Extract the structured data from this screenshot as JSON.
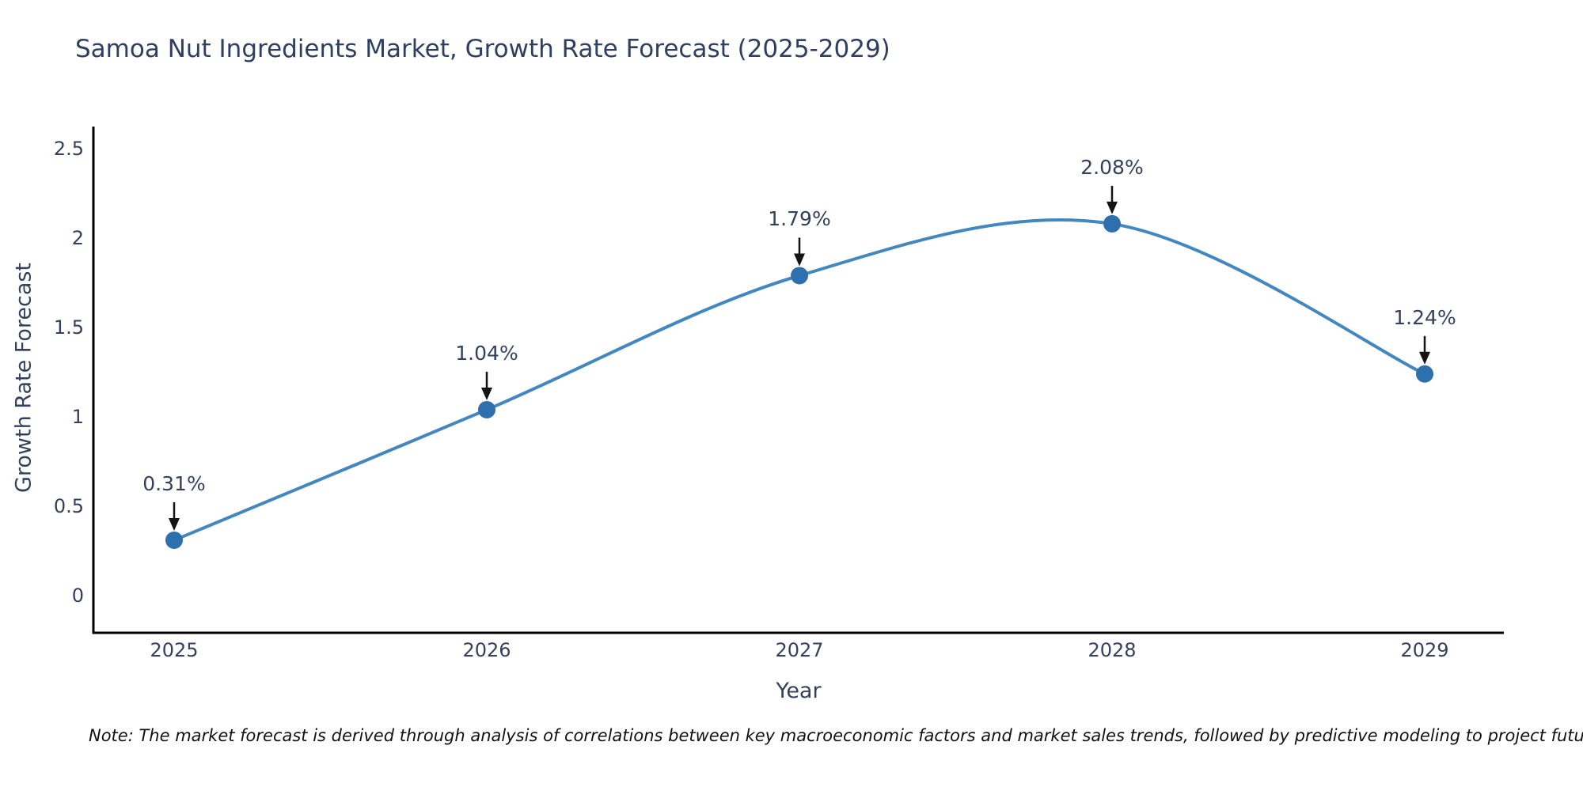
{
  "page": {
    "background": "#ffffff"
  },
  "chart_data": {
    "type": "line",
    "line_shape": "spline",
    "title": "Samoa Nut Ingredients Market, Growth Rate Forecast (2025-2029)",
    "xlabel": "Year",
    "ylabel": "Growth Rate Forecast",
    "x": [
      2025,
      2026,
      2027,
      2028,
      2029
    ],
    "values": [
      0.31,
      1.04,
      1.79,
      2.08,
      1.24
    ],
    "point_labels": [
      "0.31%",
      "1.04%",
      "1.79%",
      "2.08%",
      "1.24%"
    ],
    "xticks": [
      "2025",
      "2026",
      "2027",
      "2028",
      "2029"
    ],
    "yticks": [
      0,
      0.5,
      1,
      1.5,
      2,
      2.5
    ],
    "ylim": [
      -0.21,
      2.62
    ],
    "xlim": [
      2024.74,
      2029.26
    ],
    "grid": false,
    "legend_position": "none",
    "annotations_have_arrows": true,
    "colors": {
      "line": "#4287c0",
      "marker": "#2e70ad",
      "axis": "#000000",
      "arrow": "#141414",
      "text": "#33415c",
      "title": "#2e3f5f"
    }
  },
  "footnote": "Note: The market forecast is derived through analysis of correlations between key macroeconomic factors and market sales trends, followed by predictive modeling to project future sales"
}
